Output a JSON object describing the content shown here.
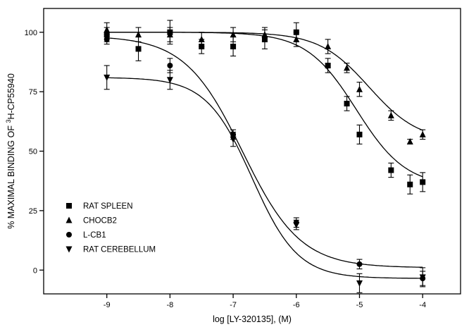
{
  "chart_data": {
    "type": "scatter",
    "xlabel": "log [LY-320135], (M)",
    "ylabel_prefix": "% MAXIMAL BINDING OF ",
    "ylabel_superscript": "3",
    "ylabel_suffix": "H-CP55940",
    "xlim": [
      -10,
      -3.4
    ],
    "ylim": [
      -10,
      110
    ],
    "xticks": [
      -9,
      -8,
      -7,
      -6,
      -5,
      -4
    ],
    "xtick_labels": [
      "-9",
      "-8",
      "-7",
      "-6",
      "-5",
      "-4"
    ],
    "yticks": [
      0,
      25,
      50,
      75,
      100
    ],
    "ytick_labels": [
      "0",
      "25",
      "50",
      "75",
      "100"
    ],
    "grid": false,
    "legend_position": "lower-left",
    "series": [
      {
        "name": "RAT SPLEEN",
        "marker": "square",
        "points": [
          {
            "x": -9,
            "y": 99,
            "err": 3
          },
          {
            "x": -8.5,
            "y": 93,
            "err": 5
          },
          {
            "x": -8,
            "y": 100,
            "err": 5
          },
          {
            "x": -7.5,
            "y": 94,
            "err": 3
          },
          {
            "x": -7,
            "y": 94,
            "err": 4
          },
          {
            "x": -6.5,
            "y": 97,
            "err": 4
          },
          {
            "x": -6,
            "y": 100,
            "err": 4
          },
          {
            "x": -5.5,
            "y": 86,
            "err": 3
          },
          {
            "x": -5.2,
            "y": 70,
            "err": 3
          },
          {
            "x": -5,
            "y": 57,
            "err": 4
          },
          {
            "x": -4.5,
            "y": 42,
            "err": 3
          },
          {
            "x": -4.2,
            "y": 36,
            "err": 4
          },
          {
            "x": -4,
            "y": 37,
            "err": 4
          }
        ],
        "curve": {
          "top": 100,
          "bottom": 35,
          "logEC50": -5.05,
          "hill": 1.1
        }
      },
      {
        "name": "CHOCB2",
        "marker": "triangle-up",
        "points": [
          {
            "x": -9,
            "y": 101,
            "err": 3
          },
          {
            "x": -8.5,
            "y": 99,
            "err": 3
          },
          {
            "x": -8,
            "y": 99,
            "err": 3
          },
          {
            "x": -7.5,
            "y": 97,
            "err": 3
          },
          {
            "x": -7,
            "y": 99,
            "err": 3
          },
          {
            "x": -6.5,
            "y": 99,
            "err": 3
          },
          {
            "x": -6,
            "y": 97,
            "err": 3
          },
          {
            "x": -5.5,
            "y": 94,
            "err": 3
          },
          {
            "x": -5.2,
            "y": 85,
            "err": 2
          },
          {
            "x": -5,
            "y": 76,
            "err": 3
          },
          {
            "x": -4.5,
            "y": 65,
            "err": 2
          },
          {
            "x": -4.2,
            "y": 54,
            "err": 1
          },
          {
            "x": -4,
            "y": 57,
            "err": 2
          }
        ],
        "curve": {
          "top": 100,
          "bottom": 54,
          "logEC50": -4.85,
          "hill": 1.1
        }
      },
      {
        "name": "L-CB1",
        "marker": "circle",
        "points": [
          {
            "x": -9,
            "y": 97,
            "err": 2
          },
          {
            "x": -8,
            "y": 86,
            "err": 3
          },
          {
            "x": -7,
            "y": 57,
            "err": 2
          },
          {
            "x": -6,
            "y": 20,
            "err": 2
          },
          {
            "x": -5,
            "y": 2.5,
            "err": 2
          },
          {
            "x": -4,
            "y": -3.5,
            "err": 3
          }
        ],
        "curve": {
          "top": 98.5,
          "bottom": 1,
          "logEC50": -6.85,
          "hill": 0.95
        }
      },
      {
        "name": "RAT CEREBELLUM",
        "marker": "triangle-down",
        "points": [
          {
            "x": -9,
            "y": 81,
            "err": 5
          },
          {
            "x": -8,
            "y": 80,
            "err": 4
          },
          {
            "x": -7,
            "y": 55,
            "err": 3
          },
          {
            "x": -6,
            "y": 19,
            "err": 2
          },
          {
            "x": -5,
            "y": -5.5,
            "err": 4
          },
          {
            "x": -4,
            "y": -3,
            "err": 4
          }
        ],
        "curve": {
          "top": 81,
          "bottom": -3.5,
          "logEC50": -6.7,
          "hill": 1.2
        }
      }
    ]
  }
}
